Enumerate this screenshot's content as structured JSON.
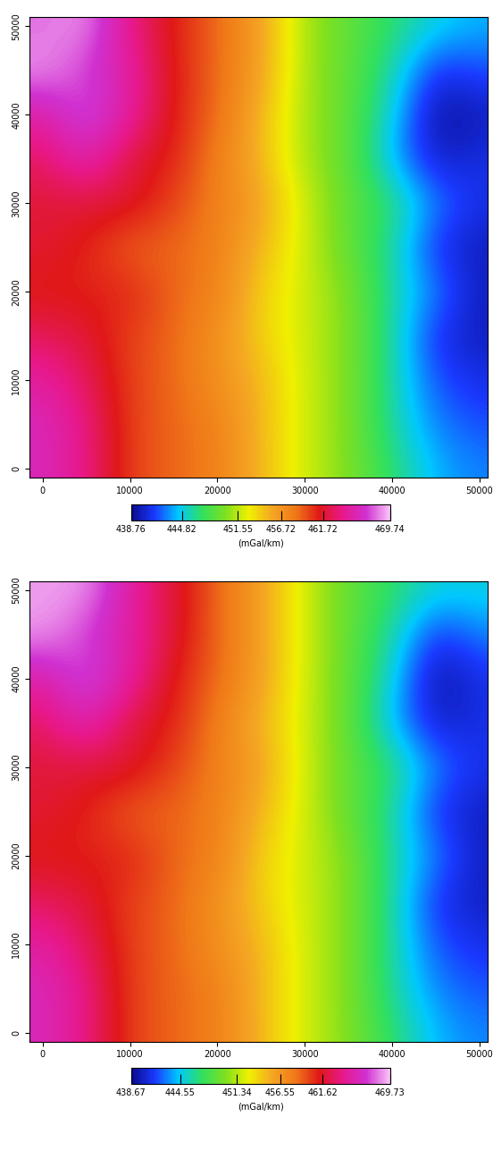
{
  "chart_data": [
    {
      "type": "heatmap",
      "x": [
        0,
        5000,
        10000,
        15000,
        20000,
        25000,
        30000,
        35000,
        40000,
        45000,
        50000
      ],
      "y": [
        0,
        5000,
        10000,
        15000,
        20000,
        25000,
        30000,
        35000,
        40000,
        45000,
        50000
      ],
      "cells": [
        [
          466,
          464,
          460,
          459,
          458,
          455,
          452,
          450,
          447,
          444,
          443
        ],
        [
          466,
          464,
          460,
          459,
          458,
          455,
          452,
          450,
          446,
          443,
          442
        ],
        [
          465,
          463,
          460,
          459,
          457,
          455,
          452,
          450,
          446,
          442,
          441
        ],
        [
          463,
          462,
          460,
          459,
          457,
          454,
          452,
          450,
          446,
          441,
          440
        ],
        [
          461,
          461,
          461,
          459,
          458,
          454,
          452,
          450,
          446,
          443,
          440
        ],
        [
          462,
          461,
          459,
          459,
          458,
          455,
          452,
          449,
          446,
          441,
          440
        ],
        [
          462,
          462,
          462,
          460,
          458,
          456,
          452,
          449,
          447,
          443,
          441
        ],
        [
          463,
          466,
          462,
          461,
          458,
          455,
          451,
          449,
          444,
          440,
          441
        ],
        [
          465,
          468,
          465,
          461,
          459,
          455,
          451,
          449,
          445,
          439,
          440
        ],
        [
          469,
          467,
          465,
          461,
          459,
          456,
          451,
          449,
          446,
          441,
          442
        ],
        [
          468,
          469,
          464,
          461,
          459,
          456,
          451,
          449,
          447,
          445,
          444
        ]
      ],
      "xlim": [
        -1500,
        51000
      ],
      "ylim": [
        -1000,
        51000
      ],
      "xticks": [
        0,
        10000,
        20000,
        30000,
        40000,
        50000
      ],
      "yticks": [
        0,
        10000,
        20000,
        30000,
        40000,
        50000
      ],
      "colorbar_range": [
        438.76,
        469.74
      ],
      "colorbar_ticks": [
        438.76,
        444.82,
        451.55,
        456.72,
        461.72,
        469.74
      ],
      "colorbar_label": "(mGal/km)"
    },
    {
      "type": "heatmap",
      "x": [
        0,
        5000,
        10000,
        15000,
        20000,
        25000,
        30000,
        35000,
        40000,
        45000,
        50000
      ],
      "y": [
        0,
        5000,
        10000,
        15000,
        20000,
        25000,
        30000,
        35000,
        40000,
        45000,
        50000
      ],
      "cells": [
        [
          466,
          464,
          460,
          459,
          458,
          455,
          452,
          450,
          447,
          444,
          443
        ],
        [
          466,
          464,
          460,
          459,
          458,
          455,
          452,
          450,
          446,
          443,
          442
        ],
        [
          465,
          463,
          460,
          459,
          457,
          455,
          452,
          450,
          446,
          442,
          441
        ],
        [
          463,
          462,
          460,
          459,
          457,
          454,
          452,
          450,
          446,
          441,
          440
        ],
        [
          461,
          461,
          461,
          459,
          458,
          454,
          452,
          450,
          446,
          443,
          440
        ],
        [
          462,
          461,
          459,
          459,
          458,
          455,
          452,
          449,
          446,
          441,
          440
        ],
        [
          462,
          462,
          462,
          460,
          458,
          456,
          452,
          449,
          447,
          443,
          441
        ],
        [
          463,
          466,
          462,
          461,
          458,
          455,
          452,
          449,
          444,
          440,
          441
        ],
        [
          465,
          468,
          465,
          461,
          459,
          456,
          452,
          449,
          445,
          439,
          441
        ],
        [
          469,
          467,
          465,
          462,
          459,
          456,
          452,
          449,
          446,
          441,
          443
        ],
        [
          469,
          469,
          465,
          462,
          459,
          456,
          452,
          449,
          447,
          445,
          445
        ]
      ],
      "xlim": [
        -1500,
        51000
      ],
      "ylim": [
        -1000,
        51000
      ],
      "xticks": [
        0,
        10000,
        20000,
        30000,
        40000,
        50000
      ],
      "yticks": [
        0,
        10000,
        20000,
        30000,
        40000,
        50000
      ],
      "colorbar_range": [
        438.67,
        469.73
      ],
      "colorbar_ticks": [
        438.67,
        444.55,
        451.34,
        456.55,
        461.62,
        469.73
      ],
      "colorbar_label": "(mGal/km)"
    }
  ]
}
